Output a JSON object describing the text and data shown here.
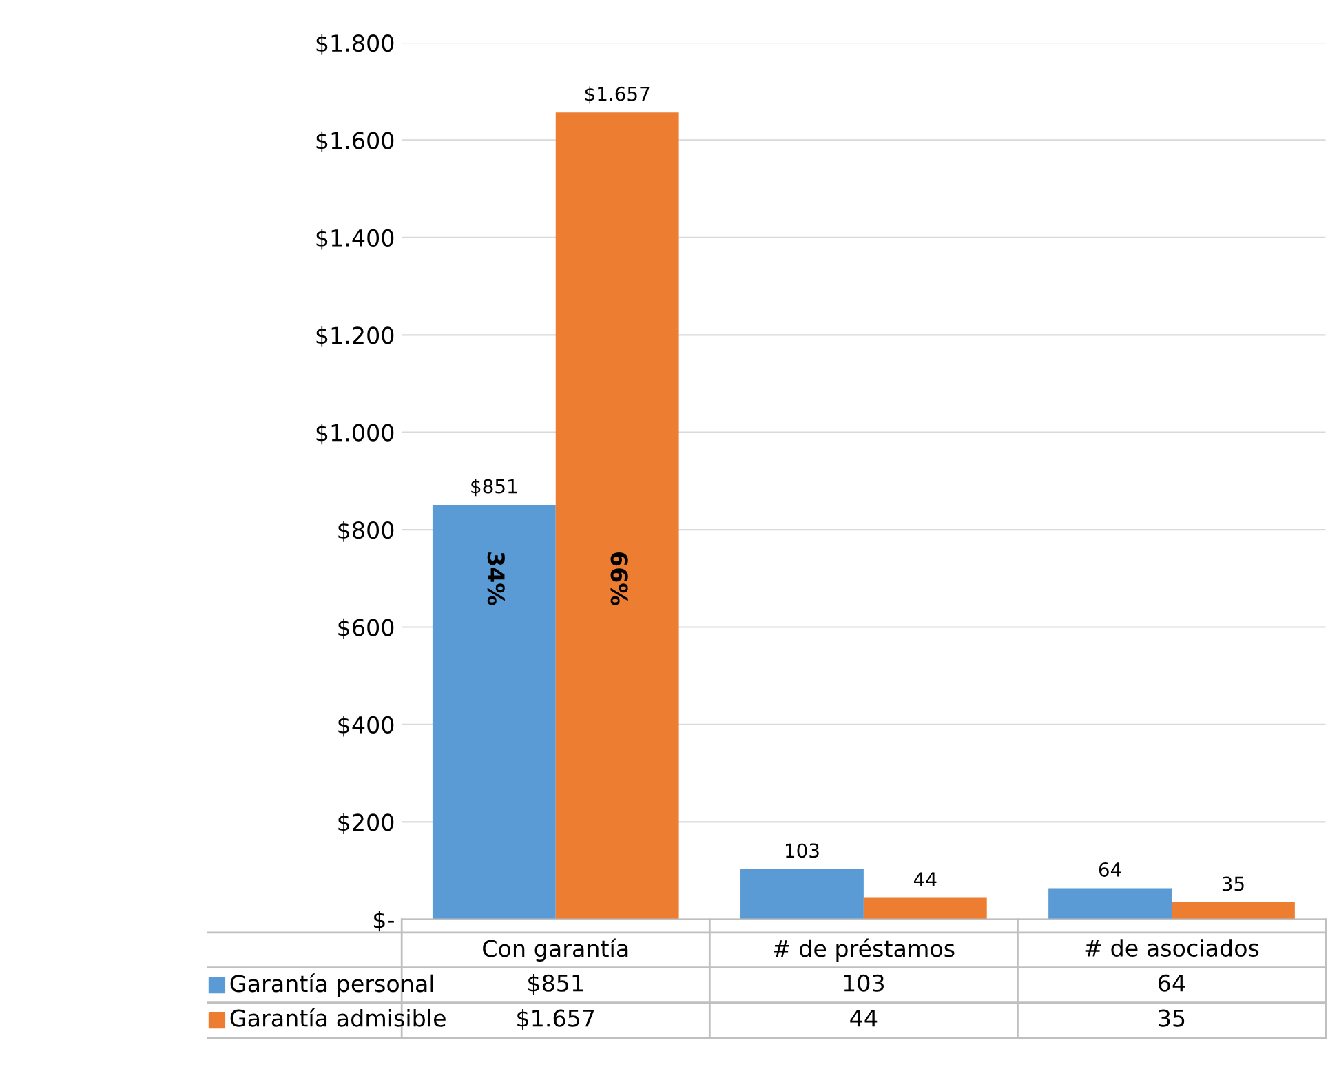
{
  "chart_data": {
    "type": "bar",
    "categories": [
      "Con garantía",
      "# de préstamos",
      "# de asociados"
    ],
    "series": [
      {
        "name": "Garantía personal",
        "color": "#5b9bd5",
        "values": [
          851,
          103,
          64
        ],
        "value_labels": [
          "$851",
          "103",
          "64"
        ]
      },
      {
        "name": "Garantía admisible",
        "color": "#ed7d31",
        "values": [
          1657,
          44,
          35
        ],
        "value_labels": [
          "$1.657",
          "44",
          "35"
        ]
      }
    ],
    "ylim": [
      0,
      1800
    ],
    "yticks": [
      {
        "value": 0,
        "label": "$-"
      },
      {
        "value": 200,
        "label": "$200"
      },
      {
        "value": 400,
        "label": "$400"
      },
      {
        "value": 600,
        "label": "$600"
      },
      {
        "value": 800,
        "label": "$800"
      },
      {
        "value": 1000,
        "label": "$1.000"
      },
      {
        "value": 1200,
        "label": "$1.200"
      },
      {
        "value": 1400,
        "label": "$1.400"
      },
      {
        "value": 1600,
        "label": "$1.600"
      },
      {
        "value": 1800,
        "label": "$1.800"
      }
    ],
    "annotations": [
      {
        "text": "34%",
        "x": "Con garantía",
        "y": 700
      },
      {
        "text": "66%",
        "x": "Con garantía",
        "y": 700
      }
    ],
    "grid": "y",
    "legend": "bottom"
  }
}
